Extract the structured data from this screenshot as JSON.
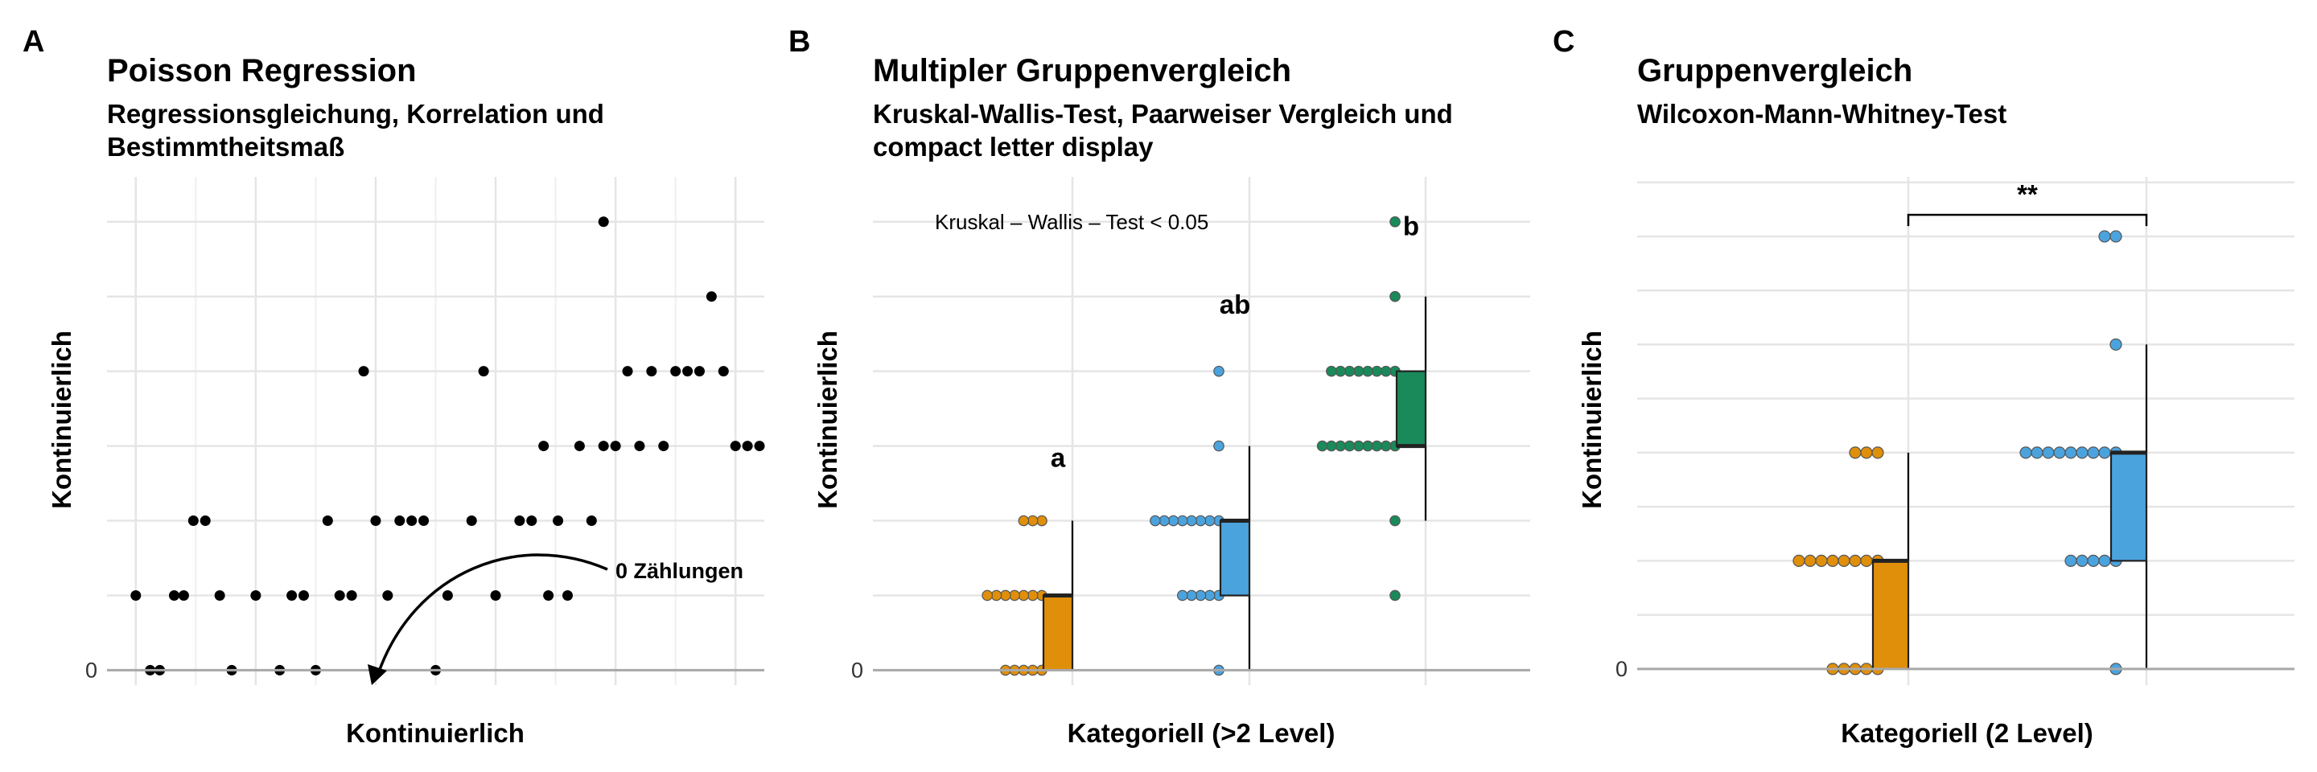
{
  "chart_data": [
    {
      "type": "scatter",
      "panel_tag": "A",
      "title": "Poisson Regression",
      "subtitle": "Regressionsgleichung, Korrelation und Bestimmtheitsmaß",
      "xlabel": "Kontinuierlich",
      "ylabel": "Kontinuierlich",
      "y_tick_labels": [
        {
          "value": 0,
          "label": "0"
        }
      ],
      "xlim": [
        -1.2,
        26.2
      ],
      "ylim": [
        -0.2,
        6.6
      ],
      "grid": true,
      "x_grid": [
        0,
        5,
        10,
        15,
        20,
        25
      ],
      "x_grid_minor": [
        2.5,
        7.5,
        12.5,
        17.5,
        22.5
      ],
      "y_grid": [
        0,
        1,
        2,
        3,
        4,
        5,
        6
      ],
      "annotation": {
        "text": "0 Zählungen",
        "x": 20.5,
        "y": 1.5,
        "arrow_to": {
          "x": 10.0,
          "y": 0.05
        }
      },
      "points": [
        [
          0.0,
          1
        ],
        [
          0.6,
          0
        ],
        [
          1.0,
          0
        ],
        [
          1.6,
          1
        ],
        [
          2.0,
          1
        ],
        [
          2.4,
          2
        ],
        [
          2.9,
          2
        ],
        [
          3.5,
          1
        ],
        [
          4.0,
          0
        ],
        [
          5.0,
          1
        ],
        [
          6.0,
          0
        ],
        [
          6.5,
          1
        ],
        [
          7.0,
          1
        ],
        [
          7.5,
          0
        ],
        [
          8.0,
          2
        ],
        [
          8.5,
          1
        ],
        [
          9.0,
          1
        ],
        [
          9.5,
          4
        ],
        [
          10.0,
          2
        ],
        [
          10.5,
          1
        ],
        [
          11.0,
          2
        ],
        [
          11.5,
          2
        ],
        [
          12.0,
          2
        ],
        [
          13.0,
          1
        ],
        [
          14.0,
          2
        ],
        [
          14.5,
          4
        ],
        [
          15.0,
          1
        ],
        [
          16.0,
          2
        ],
        [
          16.5,
          2
        ],
        [
          17.0,
          3
        ],
        [
          17.6,
          2
        ],
        [
          17.2,
          1
        ],
        [
          18.0,
          1
        ],
        [
          18.5,
          3
        ],
        [
          19.5,
          3
        ],
        [
          20.0,
          3
        ],
        [
          19.0,
          2
        ],
        [
          19.5,
          6
        ],
        [
          20.5,
          4
        ],
        [
          21.0,
          3
        ],
        [
          21.5,
          4
        ],
        [
          22.0,
          3
        ],
        [
          22.5,
          4
        ],
        [
          23.0,
          4
        ],
        [
          23.5,
          4
        ],
        [
          24.0,
          5
        ],
        [
          24.5,
          4
        ],
        [
          25.0,
          3
        ],
        [
          25.5,
          3
        ],
        [
          26.0,
          3
        ],
        [
          12.5,
          0
        ]
      ]
    },
    {
      "type": "box",
      "panel_tag": "B",
      "title": "Multipler Gruppenvergleich",
      "subtitle": "Kruskal-Wallis-Test, Paarweiser Vergleich und compact letter display",
      "xlabel": "Kategoriell (>2 Level)",
      "ylabel": "Kontinuierlich",
      "y_tick_labels": [
        {
          "value": 0,
          "label": "0"
        }
      ],
      "ylim": [
        -0.2,
        6.6
      ],
      "grid": true,
      "y_grid": [
        0,
        1,
        2,
        3,
        4,
        5,
        6
      ],
      "annotation": {
        "text": "Kruskal – Wallis – Test < 0.05",
        "x": 1.0,
        "y": 6
      },
      "groups": [
        {
          "letter": "a",
          "color": "#E08F0B",
          "counts": [
            {
              "value": 0,
              "n": 5
            },
            {
              "value": 1,
              "n": 7
            },
            {
              "value": 2,
              "n": 3
            }
          ],
          "box": {
            "q1": 0,
            "median": 1,
            "q3": 1,
            "lower": 0,
            "upper": 2
          }
        },
        {
          "letter": "ab",
          "color": "#4BA3DE",
          "counts": [
            {
              "value": 0,
              "n": 1
            },
            {
              "value": 1,
              "n": 5
            },
            {
              "value": 2,
              "n": 8
            },
            {
              "value": 3,
              "n": 1
            },
            {
              "value": 4,
              "n": 1
            }
          ],
          "box": {
            "q1": 1,
            "median": 2,
            "q3": 2,
            "lower": 0,
            "upper": 3
          }
        },
        {
          "letter": "b",
          "color": "#1A8A5A",
          "counts": [
            {
              "value": 1,
              "n": 1
            },
            {
              "value": 2,
              "n": 1
            },
            {
              "value": 3,
              "n": 9
            },
            {
              "value": 4,
              "n": 8
            },
            {
              "value": 5,
              "n": 1
            },
            {
              "value": 6,
              "n": 1
            }
          ],
          "box": {
            "q1": 3,
            "median": 3,
            "q3": 4,
            "lower": 2,
            "upper": 5
          }
        }
      ]
    },
    {
      "type": "box",
      "panel_tag": "C",
      "title": "Gruppenvergleich",
      "subtitle": "Wilcoxon-Mann-Whitney-Test",
      "xlabel": "Kategoriell (2 Level)",
      "ylabel": "Kontinuierlich",
      "y_tick_labels": [
        {
          "value": 0,
          "label": "0"
        }
      ],
      "ylim": [
        -0.15,
        4.55
      ],
      "grid": true,
      "y_grid": [
        0,
        0.5,
        1,
        1.5,
        2,
        2.5,
        3,
        3.5,
        4,
        4.5
      ],
      "significance": {
        "label": "**",
        "from_group": 1,
        "to_group": 2,
        "y": 4.2
      },
      "groups": [
        {
          "color": "#E08F0B",
          "counts": [
            {
              "value": 0,
              "n": 5
            },
            {
              "value": 1,
              "n": 8
            },
            {
              "value": 2,
              "n": 3
            }
          ],
          "box": {
            "q1": 0,
            "median": 1,
            "q3": 1,
            "lower": 0,
            "upper": 2
          }
        },
        {
          "color": "#4BA3DE",
          "counts": [
            {
              "value": 0,
              "n": 1
            },
            {
              "value": 1,
              "n": 5
            },
            {
              "value": 2,
              "n": 9
            },
            {
              "value": 3,
              "n": 1
            },
            {
              "value": 4,
              "n": 2
            }
          ],
          "box": {
            "q1": 1,
            "median": 2,
            "q3": 2,
            "lower": 0,
            "upper": 3
          }
        }
      ]
    }
  ]
}
